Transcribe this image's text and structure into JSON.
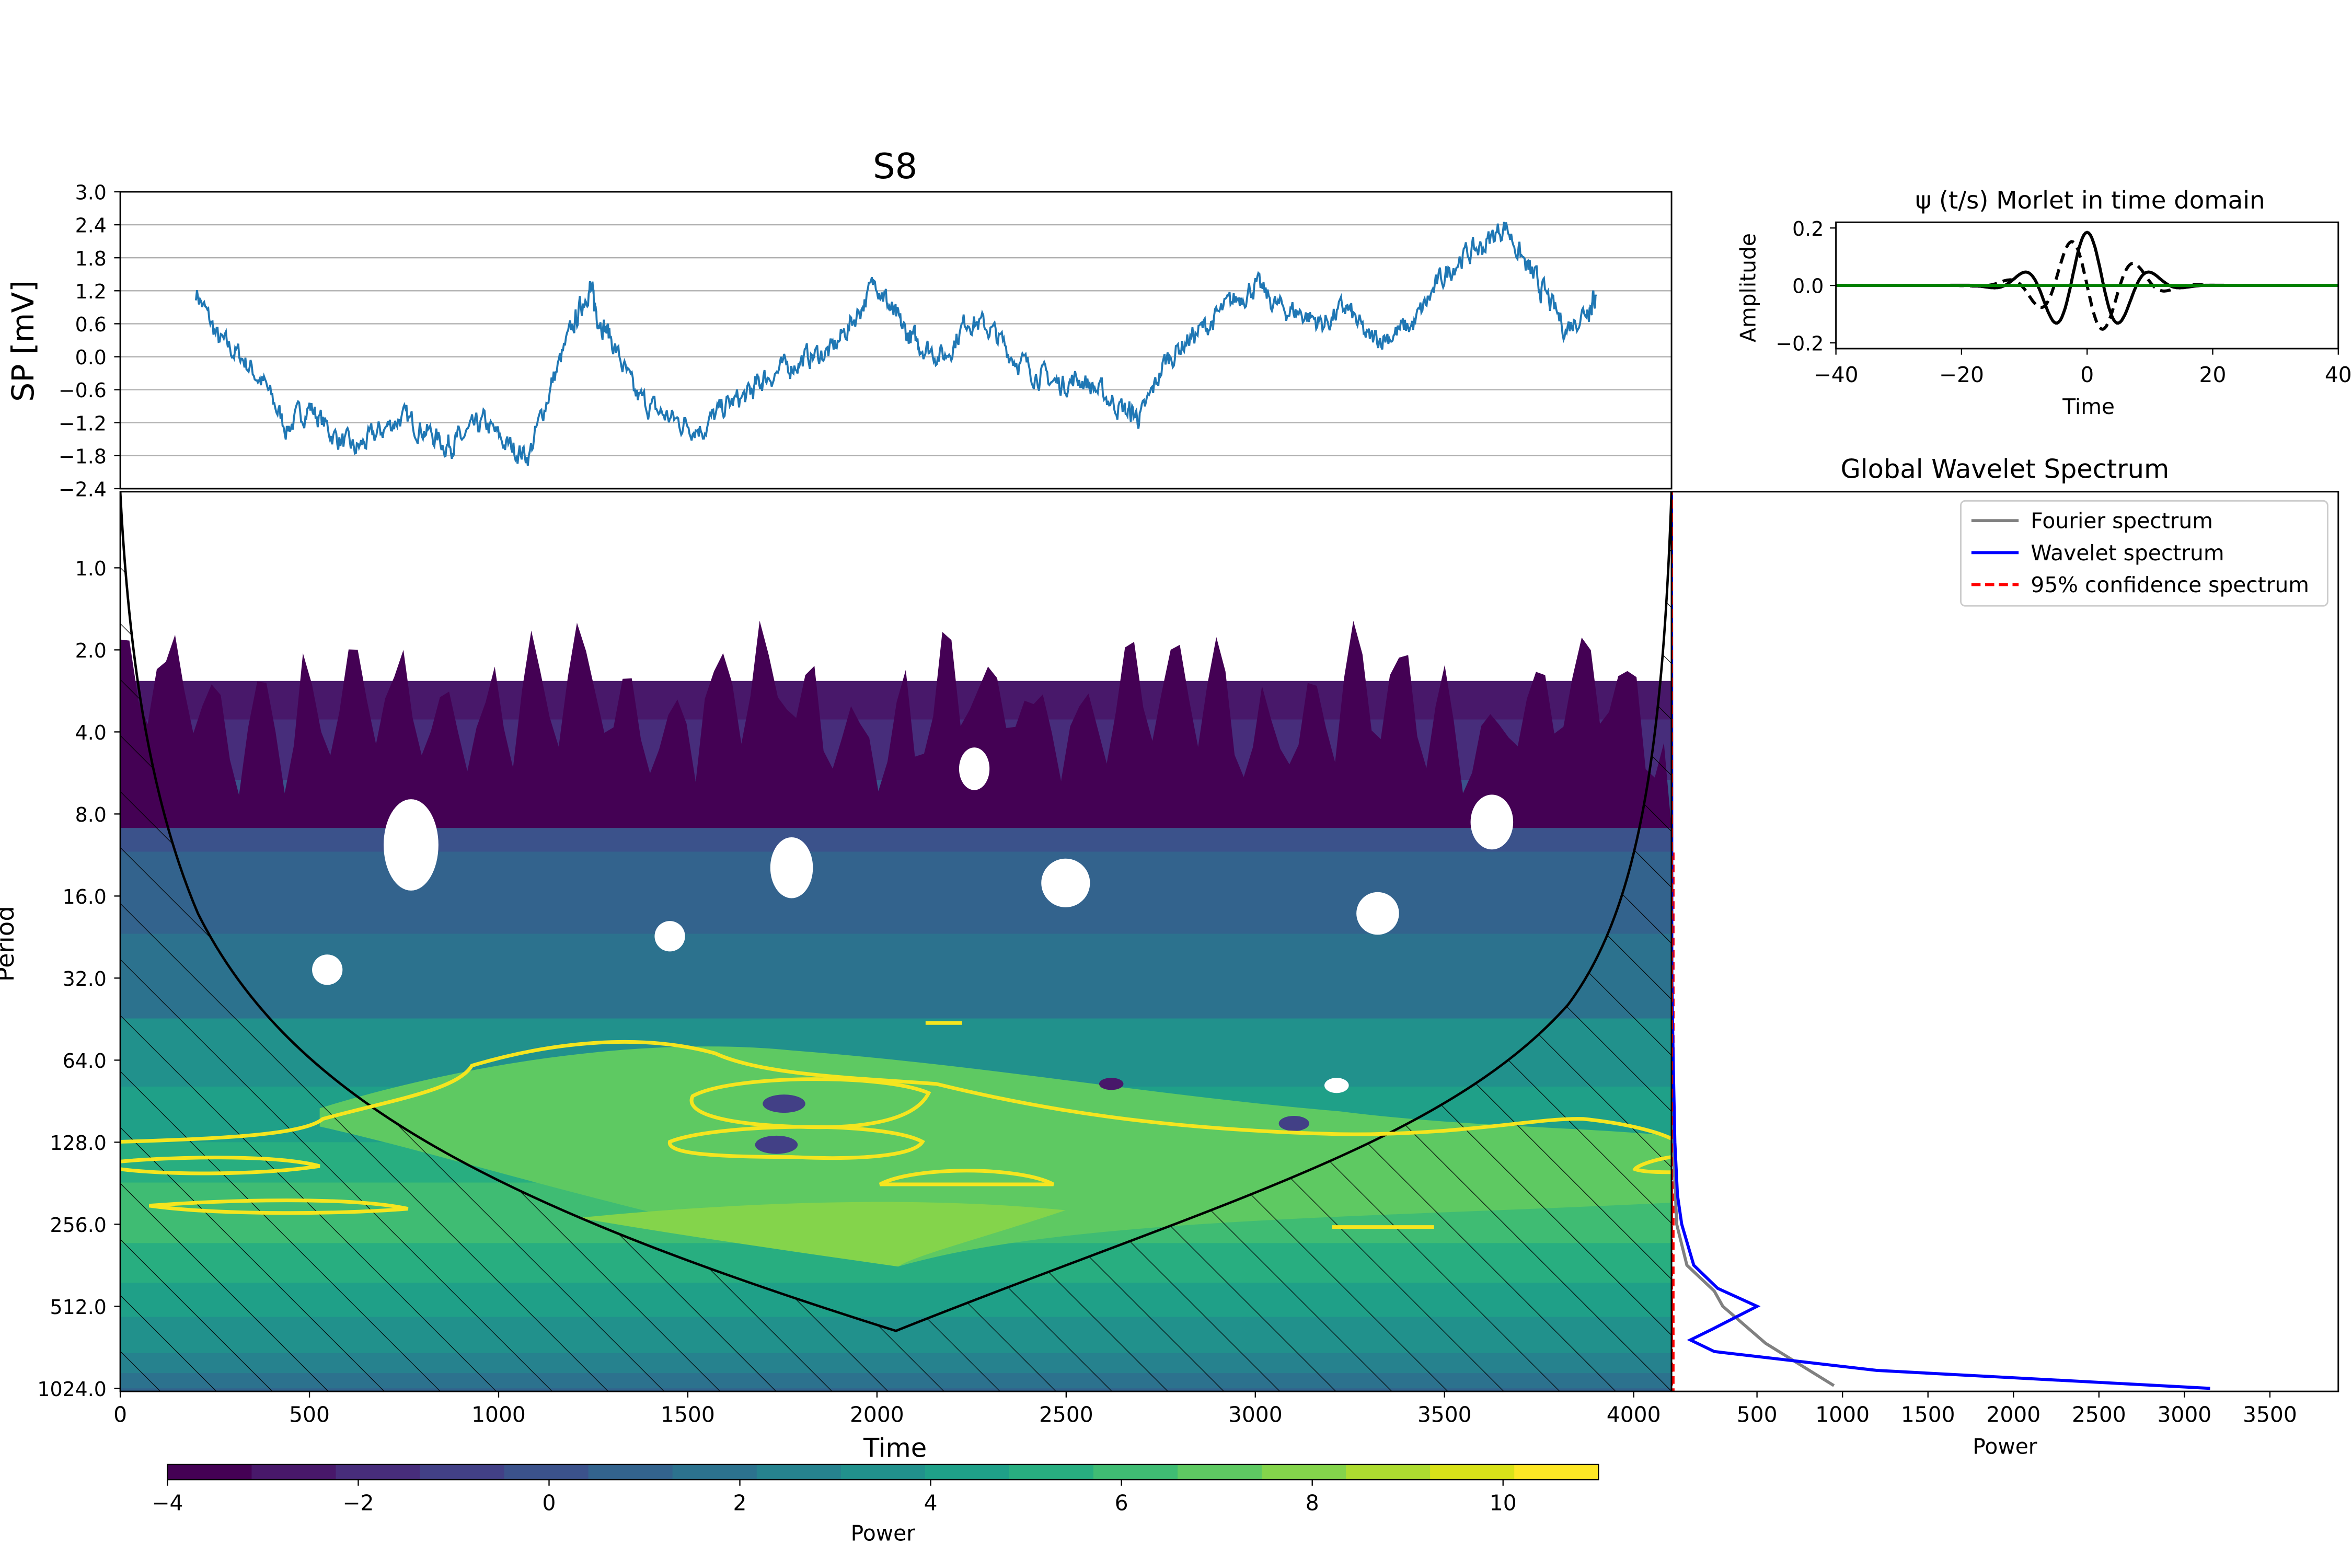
{
  "chart_data": [
    {
      "type": "line",
      "title": "S8",
      "xlabel": "",
      "ylabel": "SP [mV]",
      "xlim": [
        0,
        4100
      ],
      "ylim": [
        -2.4,
        3.0
      ],
      "yticks": [
        "3.0",
        "2.4",
        "1.8",
        "1.2",
        "0.6",
        "0.0",
        "−0.6",
        "−1.2",
        "−1.8",
        "−2.4"
      ],
      "ytick_values": [
        3.0,
        2.4,
        1.8,
        1.2,
        0.6,
        0.0,
        -0.6,
        -1.2,
        -1.8,
        -2.4
      ],
      "grid": "horizontal",
      "color": "#1f77b4",
      "series": [
        {
          "x": [
            200,
            260,
            320,
            380,
            440,
            500,
            560,
            620,
            680,
            740,
            800,
            860,
            900,
            960,
            1020,
            1080,
            1140,
            1200,
            1240,
            1260,
            1300,
            1360,
            1420,
            1480,
            1540,
            1600,
            1660,
            1700,
            1760,
            1820,
            1880,
            1940,
            2000,
            2040,
            2080,
            2120,
            2180,
            2240,
            2300,
            2360,
            2420,
            2480,
            2540,
            2600,
            2660,
            2700,
            2760,
            2820,
            2880,
            2940,
            3000,
            3060,
            3120,
            3180,
            3240,
            3300,
            3360,
            3420,
            3480,
            3540,
            3600,
            3660,
            3720,
            3760,
            3820,
            3880,
            3900
          ],
          "y": [
            1.2,
            0.3,
            0.0,
            -0.5,
            -1.3,
            -0.9,
            -1.4,
            -1.7,
            -1.4,
            -1.1,
            -1.3,
            -1.6,
            -1.5,
            -1.2,
            -1.6,
            -1.8,
            -0.5,
            0.6,
            1.3,
            0.8,
            0.3,
            -0.7,
            -1.0,
            -1.2,
            -1.3,
            -0.9,
            -0.7,
            -0.4,
            -0.2,
            0.0,
            0.1,
            0.7,
            1.4,
            0.8,
            0.4,
            0.2,
            0.0,
            0.7,
            0.5,
            0.0,
            -0.3,
            -0.5,
            -0.4,
            -0.7,
            -1.0,
            -1.1,
            -0.1,
            0.3,
            0.6,
            1.0,
            1.3,
            0.9,
            0.8,
            0.6,
            0.9,
            0.3,
            0.4,
            0.6,
            1.3,
            1.8,
            2.0,
            2.4,
            1.6,
            1.2,
            0.5,
            0.9,
            1.1
          ]
        }
      ]
    },
    {
      "type": "line",
      "title": "ψ (t/s) Morlet in time domain",
      "xlabel": "Time",
      "ylabel": "Amplitude",
      "xlim": [
        -40,
        40
      ],
      "ylim": [
        -0.22,
        0.22
      ],
      "xticks": [
        "−40",
        "−20",
        "0",
        "20",
        "40"
      ],
      "xtick_values": [
        -40,
        -20,
        0,
        20,
        40
      ],
      "yticks": [
        "0.2",
        "0.0",
        "−0.2"
      ],
      "ytick_values": [
        0.2,
        0.0,
        -0.2
      ],
      "wavelet": {
        "omega0": 6,
        "sigma": 12.2,
        "peak": 0.185
      },
      "series": [
        {
          "role": "real",
          "color": "#000000",
          "style": "solid"
        },
        {
          "role": "imaginary",
          "color": "#000000",
          "style": "dashed"
        },
        {
          "role": "zero",
          "color": "#008000",
          "style": "solid"
        }
      ]
    },
    {
      "type": "heatmap",
      "xlabel": "Time",
      "ylabel": "Period",
      "xlim": [
        0,
        4100
      ],
      "xticks": [
        "0",
        "500",
        "1000",
        "1500",
        "2000",
        "2500",
        "3000",
        "3500",
        "4000"
      ],
      "xtick_values": [
        0,
        500,
        1000,
        1500,
        2000,
        2500,
        3000,
        3500,
        4000
      ],
      "yscale": "log2",
      "ylim": [
        0.5,
        1024
      ],
      "yticks": [
        "1.0",
        "2.0",
        "4.0",
        "8.0",
        "16.0",
        "32.0",
        "64.0",
        "128.0",
        "256.0",
        "512.0",
        "1024.0"
      ],
      "ytick_values": [
        1,
        2,
        4,
        8,
        16,
        32,
        64,
        128,
        256,
        512,
        1024
      ],
      "colormap": "viridis",
      "colorbar": {
        "label": "Power",
        "range": [
          -4,
          11
        ],
        "ticks": [
          "−4",
          "−2",
          "0",
          "2",
          "4",
          "6",
          "8",
          "10"
        ],
        "tick_values": [
          -4,
          -2,
          0,
          2,
          4,
          6,
          8,
          10
        ],
        "levels": [
          "#440154",
          "#48186a",
          "#472d7b",
          "#424086",
          "#3b528b",
          "#33638d",
          "#2c728e",
          "#26828e",
          "#21918c",
          "#1fa088",
          "#28ae80",
          "#3fbc73",
          "#5ec962",
          "#84d44b",
          "#addc30",
          "#d8e219",
          "#fde725"
        ]
      },
      "cone_of_influence_min_period": 630,
      "cone_of_influence_apex_time": 2050,
      "significance_contour_color": "#f5e51f"
    },
    {
      "type": "line",
      "title": "Global Wavelet Spectrum",
      "xlabel": "Power",
      "xlim": [
        0,
        3900
      ],
      "xticks": [
        "500",
        "1000",
        "1500",
        "2000",
        "2500",
        "3000",
        "3500"
      ],
      "xtick_values": [
        500,
        1000,
        1500,
        2000,
        2500,
        3000,
        3500
      ],
      "yscale": "log2",
      "ylim": [
        0.5,
        1024
      ],
      "legend": {
        "placement": "top-right"
      },
      "series": [
        {
          "name": "Fourier spectrum",
          "color": "#808080",
          "period": [
            64,
            128,
            256,
            362,
            450,
            512,
            700,
            1000
          ],
          "power": [
            5,
            10,
            30,
            90,
            250,
            300,
            550,
            950
          ]
        },
        {
          "name": "Wavelet spectrum",
          "color": "#0000ff",
          "period": [
            0.5,
            32,
            64,
            128,
            200,
            256,
            362,
            440,
            512,
            620,
            680,
            750,
            880,
            1024
          ],
          "power": [
            0,
            2,
            10,
            20,
            35,
            60,
            130,
            270,
            500,
            240,
            110,
            250,
            1200,
            3150
          ]
        },
        {
          "name": "95% confidence spectrum",
          "color": "#ff0000",
          "style": "dashed",
          "period": [
            0.5,
            1024
          ],
          "power": [
            0,
            0
          ]
        }
      ]
    }
  ]
}
